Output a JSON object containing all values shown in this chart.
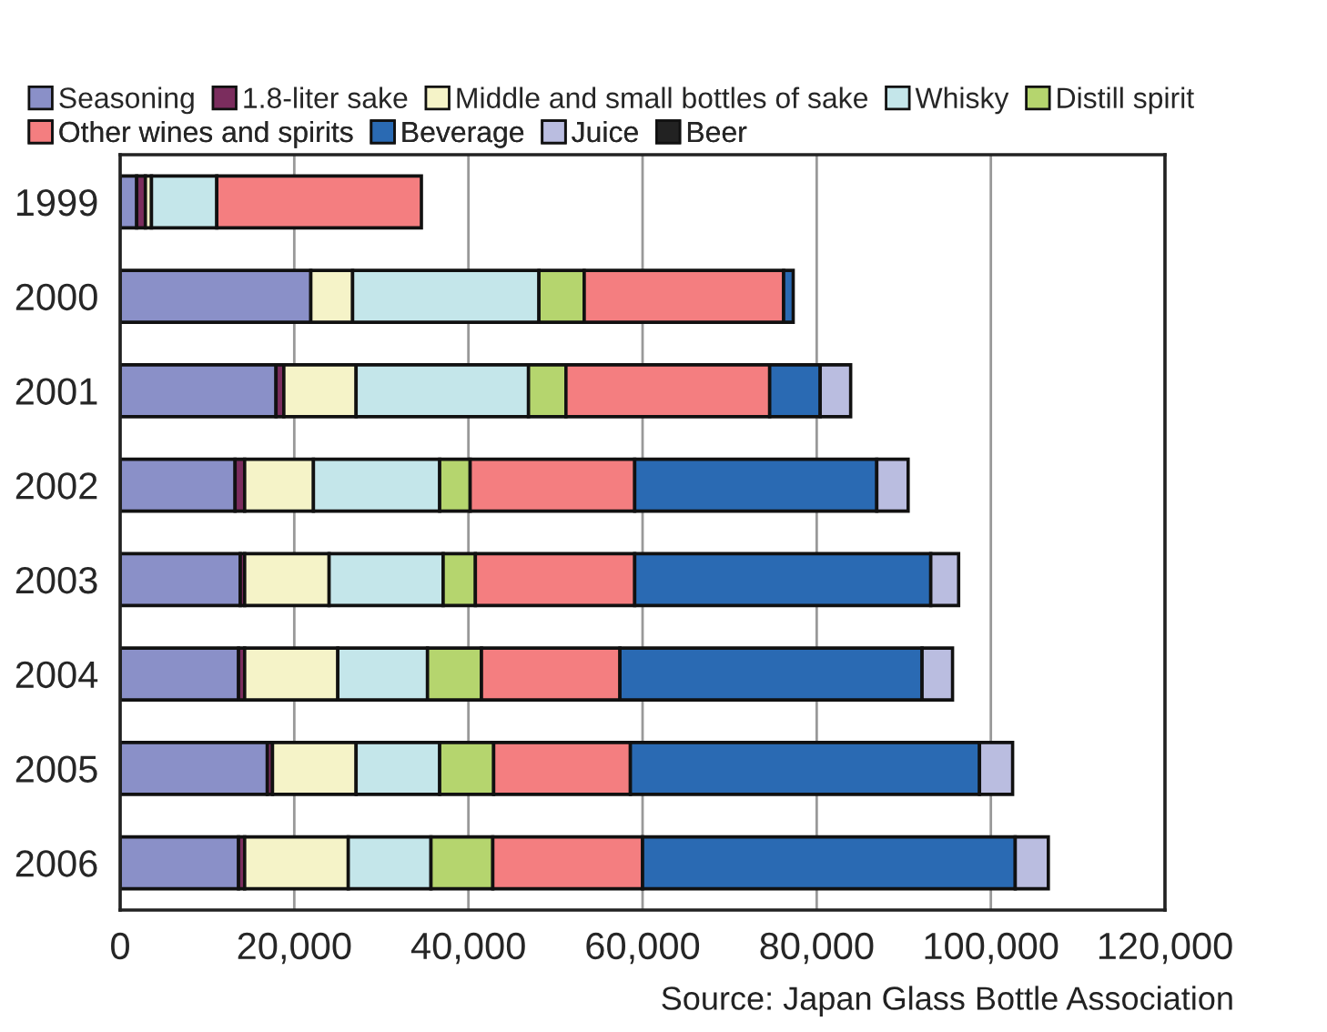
{
  "chart_data": {
    "type": "bar",
    "orientation": "horizontal",
    "stacked": true,
    "categories": [
      "1999",
      "2000",
      "2001",
      "2002",
      "2003",
      "2004",
      "2005",
      "2006"
    ],
    "series": [
      {
        "name": "Seasoning",
        "color": "#8a90c8",
        "values": [
          1900,
          21900,
          17900,
          13200,
          13800,
          13600,
          16900,
          13600
        ]
      },
      {
        "name": "1.8-liter sake",
        "color": "#7b2d5e",
        "values": [
          1000,
          null,
          900,
          1100,
          500,
          700,
          600,
          700
        ]
      },
      {
        "name": "Middle and small bottles of sake",
        "color": "#f5f3c8",
        "values": [
          700,
          4800,
          8300,
          7900,
          9700,
          10700,
          9600,
          11900
        ]
      },
      {
        "name": "Whisky",
        "color": "#c4e6ea",
        "values": [
          7500,
          21400,
          19800,
          14500,
          13100,
          10300,
          9600,
          9500
        ]
      },
      {
        "name": "Distill spirit",
        "color": "#b5d56e",
        "values": [
          null,
          5200,
          4300,
          3500,
          3700,
          6200,
          6200,
          7100
        ]
      },
      {
        "name": "Other wines and spirits",
        "color": "#f47e80",
        "values": [
          23500,
          22900,
          23400,
          18900,
          18300,
          15900,
          15700,
          17200
        ]
      },
      {
        "name": "Beverage",
        "color": "#2a6ab3",
        "values": [
          null,
          1100,
          5800,
          27800,
          34000,
          34700,
          40100,
          42800
        ]
      },
      {
        "name": "Juice",
        "color": "#babde0",
        "values": [
          null,
          null,
          3500,
          3600,
          3200,
          3500,
          3800,
          3800
        ]
      },
      {
        "name": "Beer",
        "color": "#222222",
        "values": [
          null,
          null,
          null,
          null,
          null,
          null,
          null,
          null
        ]
      }
    ],
    "xlim": [
      0,
      120000
    ],
    "xticks": [
      {
        "value": 0,
        "label": "0"
      },
      {
        "value": 20000,
        "label": "20,000"
      },
      {
        "value": 40000,
        "label": "40,000"
      },
      {
        "value": 60000,
        "label": "60,000"
      },
      {
        "value": 80000,
        "label": "80,000"
      },
      {
        "value": 100000,
        "label": "100,000"
      },
      {
        "value": 120000,
        "label": "120,000"
      }
    ],
    "grid": "x",
    "legend": "top",
    "annotations": [
      "Source: Japan Glass Bottle Association"
    ]
  }
}
